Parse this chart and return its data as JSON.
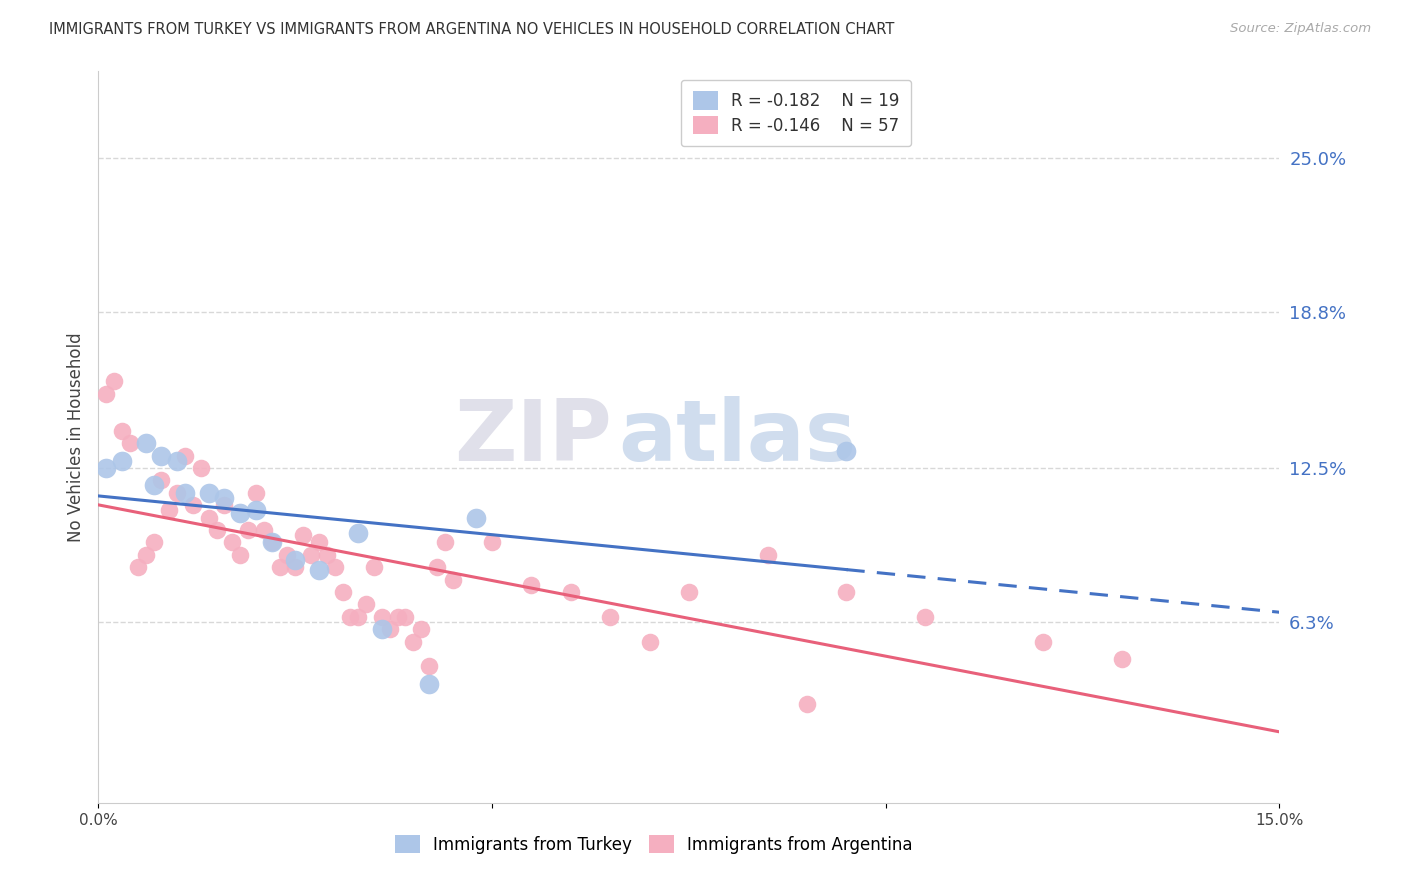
{
  "title": "IMMIGRANTS FROM TURKEY VS IMMIGRANTS FROM ARGENTINA NO VEHICLES IN HOUSEHOLD CORRELATION CHART",
  "source": "Source: ZipAtlas.com",
  "ylabel": "No Vehicles in Household",
  "ytick_values": [
    0.063,
    0.125,
    0.188,
    0.25
  ],
  "ytick_labels": [
    "6.3%",
    "12.5%",
    "18.8%",
    "25.0%"
  ],
  "xlim": [
    0.0,
    0.15
  ],
  "ylim": [
    -0.01,
    0.285
  ],
  "watermark_zip": "ZIP",
  "watermark_atlas": "atlas",
  "legend_r_turkey": "-0.182",
  "legend_n_turkey": "19",
  "legend_r_argentina": "-0.146",
  "legend_n_argentina": "57",
  "color_turkey": "#adc6e8",
  "color_argentina": "#f5afc0",
  "line_color_turkey": "#4472c4",
  "line_color_argentina": "#e8607a",
  "turkey_x": [
    0.001,
    0.003,
    0.006,
    0.007,
    0.008,
    0.01,
    0.011,
    0.014,
    0.016,
    0.018,
    0.02,
    0.022,
    0.025,
    0.028,
    0.033,
    0.036,
    0.042,
    0.048,
    0.095
  ],
  "turkey_y": [
    0.125,
    0.128,
    0.135,
    0.118,
    0.13,
    0.128,
    0.115,
    0.115,
    0.113,
    0.107,
    0.108,
    0.095,
    0.088,
    0.084,
    0.099,
    0.06,
    0.038,
    0.105,
    0.132
  ],
  "argentina_x": [
    0.001,
    0.002,
    0.003,
    0.004,
    0.005,
    0.006,
    0.007,
    0.008,
    0.009,
    0.01,
    0.011,
    0.012,
    0.013,
    0.014,
    0.015,
    0.016,
    0.017,
    0.018,
    0.019,
    0.02,
    0.021,
    0.022,
    0.023,
    0.024,
    0.025,
    0.026,
    0.027,
    0.028,
    0.029,
    0.03,
    0.031,
    0.032,
    0.033,
    0.034,
    0.035,
    0.036,
    0.037,
    0.038,
    0.039,
    0.04,
    0.041,
    0.042,
    0.043,
    0.044,
    0.045,
    0.05,
    0.055,
    0.06,
    0.065,
    0.07,
    0.075,
    0.085,
    0.09,
    0.095,
    0.105,
    0.12,
    0.13
  ],
  "argentina_y": [
    0.155,
    0.16,
    0.14,
    0.135,
    0.085,
    0.09,
    0.095,
    0.12,
    0.108,
    0.115,
    0.13,
    0.11,
    0.125,
    0.105,
    0.1,
    0.11,
    0.095,
    0.09,
    0.1,
    0.115,
    0.1,
    0.095,
    0.085,
    0.09,
    0.085,
    0.098,
    0.09,
    0.095,
    0.09,
    0.085,
    0.075,
    0.065,
    0.065,
    0.07,
    0.085,
    0.065,
    0.06,
    0.065,
    0.065,
    0.055,
    0.06,
    0.045,
    0.085,
    0.095,
    0.08,
    0.095,
    0.078,
    0.075,
    0.065,
    0.055,
    0.075,
    0.09,
    0.03,
    0.075,
    0.065,
    0.055,
    0.048
  ],
  "background_color": "#ffffff",
  "grid_color": "#d8d8d8",
  "right_axis_color": "#4472c4",
  "title_fontsize": 10.5,
  "tick_fontsize": 11,
  "legend_fontsize": 12,
  "ylabel_fontsize": 12
}
